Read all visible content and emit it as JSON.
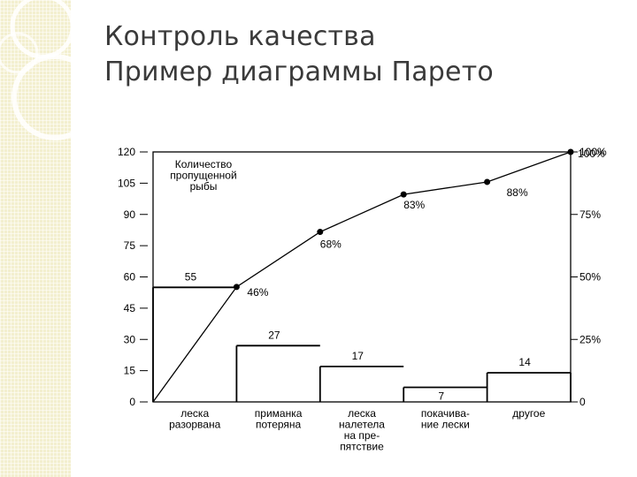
{
  "slide": {
    "title_line1": "Контроль качества",
    "title_line2": "Пример диаграммы Парето"
  },
  "chart_data": {
    "type": "bar",
    "subtype": "pareto",
    "annotation_lines": [
      "Количество",
      "пропущенной",
      "рыбы"
    ],
    "categories": [
      [
        "леска",
        "разорвана"
      ],
      [
        "приманка",
        "потеряна"
      ],
      [
        "леска",
        "налетела",
        "на пре-",
        "пятствие"
      ],
      [
        "покачива-",
        "ние лески"
      ],
      [
        "другое"
      ]
    ],
    "values": [
      55,
      27,
      17,
      7,
      14
    ],
    "cumulative_percent": [
      46,
      68,
      83,
      88,
      100
    ],
    "cumulative_labels": [
      "46%",
      "68%",
      "83%",
      "88%",
      "100%"
    ],
    "y_left": {
      "ticks": [
        0,
        15,
        30,
        45,
        60,
        75,
        90,
        105,
        120
      ],
      "range": [
        0,
        120
      ]
    },
    "y_right": {
      "ticks": [
        "0",
        "25%",
        "50%",
        "75%",
        "100%"
      ],
      "range": [
        0,
        100
      ]
    },
    "grid": false,
    "colors": {
      "line": "#000000",
      "bars": "none"
    }
  }
}
